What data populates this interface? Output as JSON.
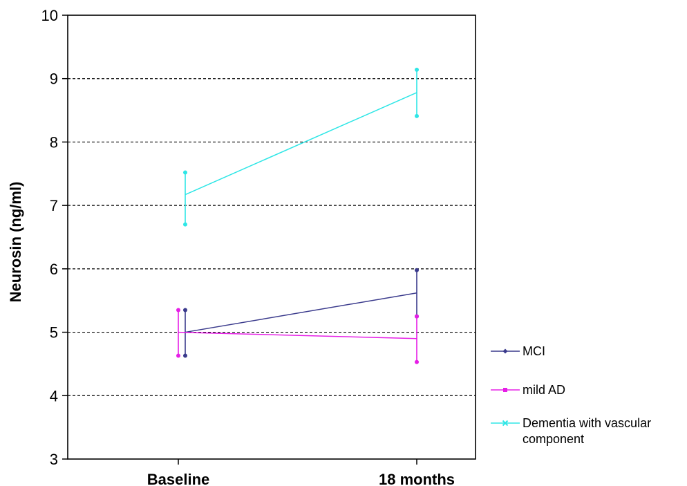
{
  "chart_data": {
    "type": "line",
    "categories": [
      "Baseline",
      "18 months"
    ],
    "ylabel": "Neurosin (ng/ml)",
    "ylim": [
      3,
      10
    ],
    "yticks": [
      3,
      4,
      5,
      6,
      7,
      8,
      9,
      10
    ],
    "grid": "dashed horizontal",
    "legend_placement": "right",
    "series": [
      {
        "name": "MCI",
        "color": "#3a3a8c",
        "marker": "diamond",
        "values": [
          5.0,
          5.62
        ],
        "upper": [
          5.35,
          5.98
        ],
        "lower": [
          4.63,
          5.25
        ]
      },
      {
        "name": "mild AD",
        "color": "#e61ee6",
        "marker": "square",
        "values": [
          5.0,
          4.9
        ],
        "upper": [
          5.35,
          5.25
        ],
        "lower": [
          4.63,
          4.53
        ]
      },
      {
        "name": "Dementia with vascular component",
        "legend_lines": [
          "Dementia with vascular",
          "component"
        ],
        "color": "#2ee6e6",
        "marker": "x",
        "values": [
          7.17,
          8.78
        ],
        "upper": [
          7.52,
          9.14
        ],
        "lower": [
          6.7,
          8.41
        ]
      }
    ]
  }
}
